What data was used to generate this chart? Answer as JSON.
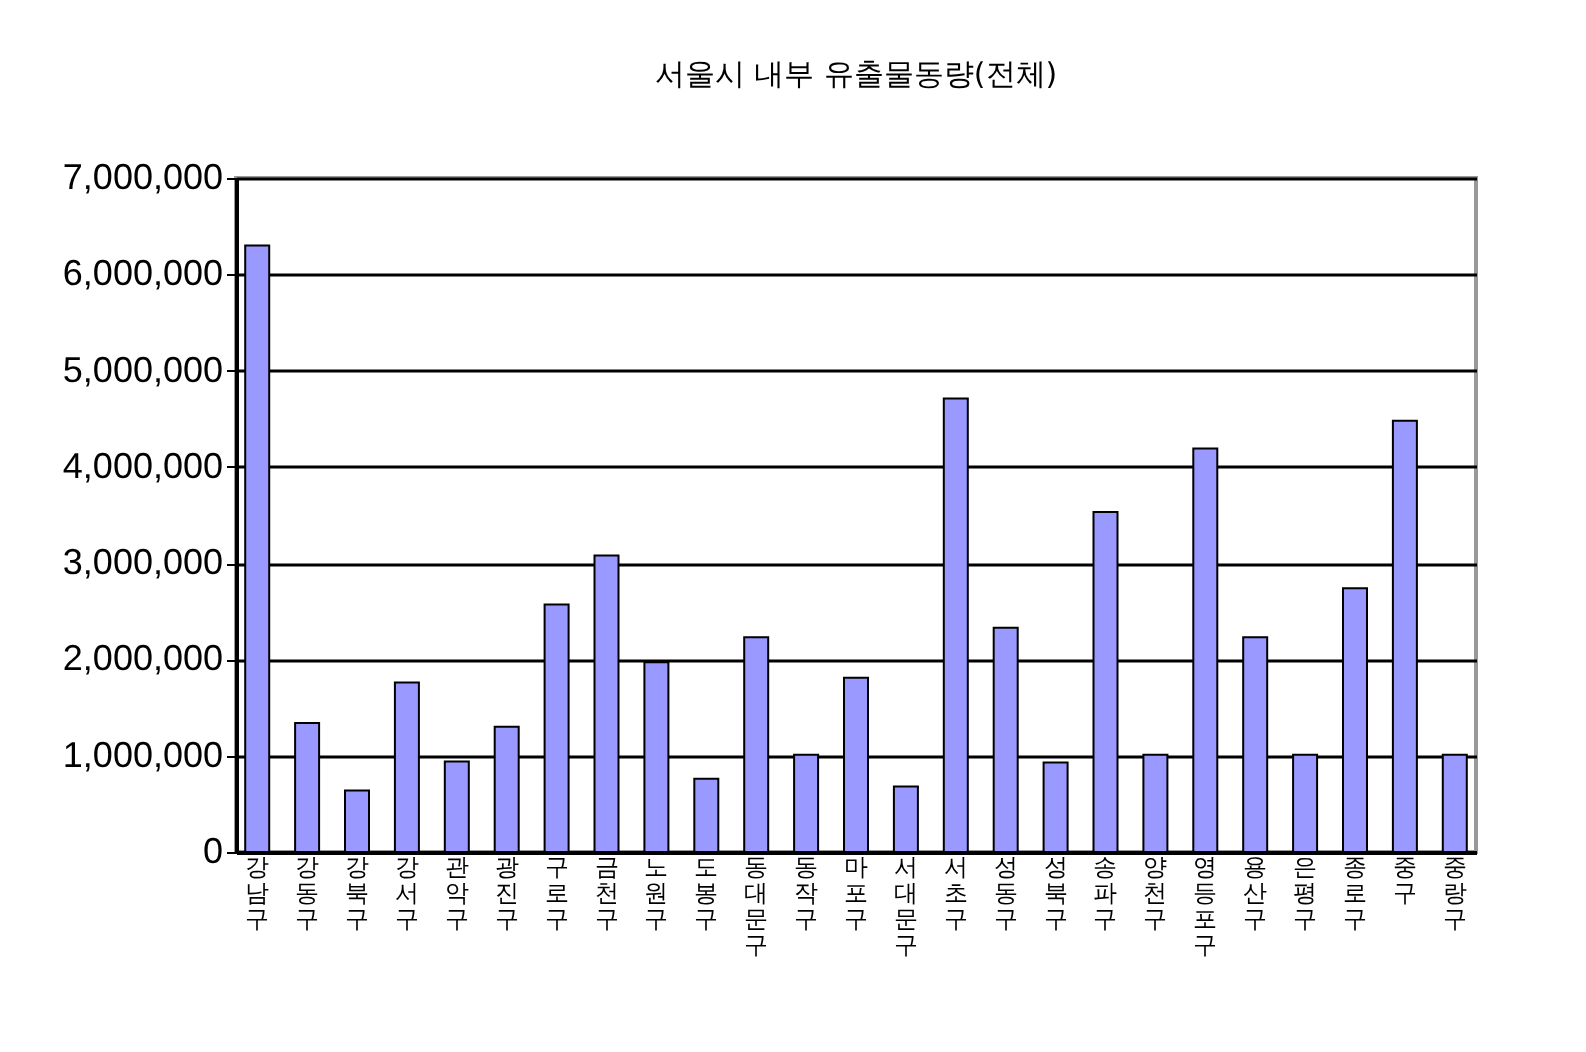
{
  "chart_data": {
    "type": "bar",
    "title": "서울시 내부 유출물동량(전체)",
    "categories": [
      "강남구",
      "강동구",
      "강북구",
      "강서구",
      "관악구",
      "광진구",
      "구로구",
      "금천구",
      "노원구",
      "도봉구",
      "동대문구",
      "동작구",
      "마포구",
      "서대문구",
      "서초구",
      "성동구",
      "성북구",
      "송파구",
      "양천구",
      "영등포구",
      "용산구",
      "은평구",
      "종로구",
      "중구",
      "중랑구"
    ],
    "values": [
      6300000,
      1340000,
      640000,
      1760000,
      940000,
      1300000,
      2570000,
      3080000,
      1970000,
      760000,
      2230000,
      1010000,
      1810000,
      680000,
      4710000,
      2330000,
      930000,
      3530000,
      1010000,
      4190000,
      2230000,
      1010000,
      2740000,
      4480000,
      1010000
    ],
    "color": "#9999ff",
    "ylim": [
      0,
      7000000
    ],
    "yticks": [
      0,
      {
        "value": 1000000,
        "label": "1,000,000"
      },
      {
        "value": 2000000,
        "label": "2,000,000"
      },
      {
        "value": 3000000,
        "label": "3,000,000"
      },
      {
        "value": 4000000,
        "label": "4,000,000"
      },
      {
        "value": 5000000,
        "label": "5,000,000"
      },
      {
        "value": 6000000,
        "label": "6,000,000"
      },
      {
        "value": 7000000,
        "label": "7,000,000"
      }
    ],
    "grid": "y"
  }
}
